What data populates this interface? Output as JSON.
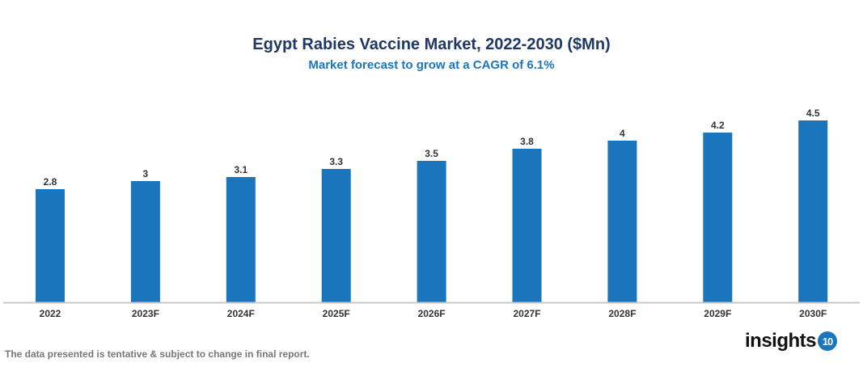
{
  "chart_data": {
    "type": "bar",
    "title": "Egypt Rabies Vaccine Market, 2022-2030 ($Mn)",
    "subtitle": "Market forecast to grow at a CAGR of 6.1%",
    "categories": [
      "2022",
      "2023F",
      "2024F",
      "2025F",
      "2026F",
      "2027F",
      "2028F",
      "2029F",
      "2030F"
    ],
    "values": [
      2.8,
      3,
      3.1,
      3.3,
      3.5,
      3.8,
      4,
      4.2,
      4.5
    ],
    "xlabel": "",
    "ylabel": "",
    "ylim": [
      0,
      4.5
    ],
    "grid": false,
    "bar_color": "#1a75bc"
  },
  "footer": {
    "note": "The data presented is tentative & subject to change in final report.",
    "logo_text": "insights",
    "logo_number": "10"
  }
}
